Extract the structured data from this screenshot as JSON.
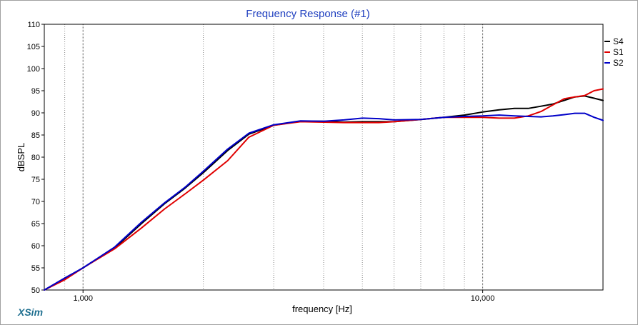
{
  "chart_data": {
    "type": "line",
    "title": "Frequency Response (#1)",
    "xlabel": "frequency [Hz]",
    "ylabel": "dBSPL",
    "x_scale": "log",
    "xlim": [
      800,
      20000
    ],
    "ylim": [
      50,
      110
    ],
    "x_ticks": [
      {
        "value": 1000,
        "label": "1,000"
      },
      {
        "value": 10000,
        "label": "10,000"
      }
    ],
    "y_ticks": [
      50,
      55,
      60,
      65,
      70,
      75,
      80,
      85,
      90,
      95,
      100,
      105,
      110
    ],
    "grid": true,
    "legend_position": "top-right",
    "series": [
      {
        "name": "S4",
        "color": "#000000",
        "points": [
          [
            800,
            50
          ],
          [
            900,
            52.5
          ],
          [
            1000,
            55
          ],
          [
            1200,
            59.5
          ],
          [
            1400,
            65
          ],
          [
            1600,
            69.5
          ],
          [
            1800,
            73
          ],
          [
            2000,
            76.5
          ],
          [
            2300,
            81.5
          ],
          [
            2600,
            85.2
          ],
          [
            3000,
            87.2
          ],
          [
            3500,
            88.1
          ],
          [
            4000,
            88.1
          ],
          [
            4500,
            87.9
          ],
          [
            5000,
            88
          ],
          [
            5500,
            88
          ],
          [
            6000,
            88
          ],
          [
            7000,
            88.5
          ],
          [
            8000,
            89
          ],
          [
            9000,
            89.5
          ],
          [
            10000,
            90.2
          ],
          [
            11000,
            90.7
          ],
          [
            12000,
            91
          ],
          [
            13000,
            91
          ],
          [
            14000,
            91.5
          ],
          [
            15000,
            92
          ],
          [
            16000,
            92.8
          ],
          [
            17000,
            93.6
          ],
          [
            18000,
            93.8
          ],
          [
            19000,
            93.3
          ],
          [
            20000,
            92.8
          ]
        ]
      },
      {
        "name": "S1",
        "color": "#e00000",
        "points": [
          [
            800,
            50
          ],
          [
            900,
            52.3
          ],
          [
            1000,
            55
          ],
          [
            1200,
            59.3
          ],
          [
            1400,
            64
          ],
          [
            1600,
            68.3
          ],
          [
            1800,
            71.7
          ],
          [
            2000,
            74.8
          ],
          [
            2300,
            79.2
          ],
          [
            2600,
            84.5
          ],
          [
            3000,
            87.2
          ],
          [
            3500,
            88
          ],
          [
            4000,
            87.9
          ],
          [
            4500,
            87.8
          ],
          [
            5000,
            87.8
          ],
          [
            5500,
            87.8
          ],
          [
            6000,
            88
          ],
          [
            7000,
            88.5
          ],
          [
            8000,
            89
          ],
          [
            9000,
            89
          ],
          [
            10000,
            89
          ],
          [
            11000,
            88.8
          ],
          [
            12000,
            88.8
          ],
          [
            13000,
            89.3
          ],
          [
            14000,
            90.3
          ],
          [
            15000,
            91.8
          ],
          [
            16000,
            93.2
          ],
          [
            17000,
            93.6
          ],
          [
            18000,
            93.9
          ],
          [
            19000,
            95
          ],
          [
            20000,
            95.4
          ]
        ]
      },
      {
        "name": "S2",
        "color": "#0000c8",
        "points": [
          [
            800,
            50
          ],
          [
            900,
            52.7
          ],
          [
            1000,
            55
          ],
          [
            1200,
            59.7
          ],
          [
            1400,
            65.3
          ],
          [
            1600,
            69.7
          ],
          [
            1800,
            73.2
          ],
          [
            2000,
            76.8
          ],
          [
            2300,
            81.8
          ],
          [
            2600,
            85.4
          ],
          [
            3000,
            87.3
          ],
          [
            3500,
            88.2
          ],
          [
            4000,
            88.1
          ],
          [
            4500,
            88.4
          ],
          [
            5000,
            88.8
          ],
          [
            5500,
            88.7
          ],
          [
            6000,
            88.4
          ],
          [
            7000,
            88.5
          ],
          [
            8000,
            89
          ],
          [
            9000,
            89.2
          ],
          [
            10000,
            89.3
          ],
          [
            11000,
            89.5
          ],
          [
            12000,
            89.3
          ],
          [
            13000,
            89.2
          ],
          [
            14000,
            89.1
          ],
          [
            15000,
            89.3
          ],
          [
            16000,
            89.6
          ],
          [
            17000,
            89.9
          ],
          [
            18000,
            89.9
          ],
          [
            19000,
            89
          ],
          [
            20000,
            88.3
          ]
        ]
      }
    ]
  },
  "branding": {
    "app_name": "XSim"
  }
}
